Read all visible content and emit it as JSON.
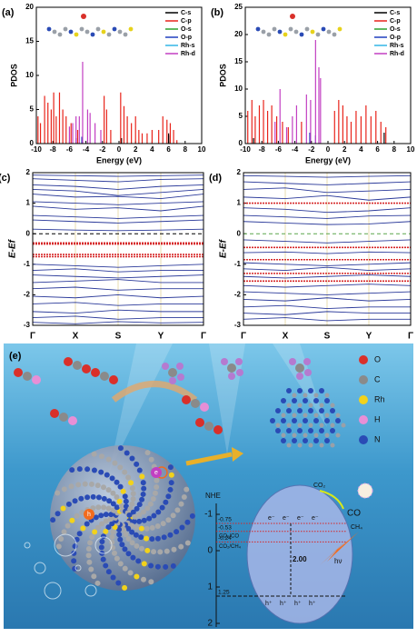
{
  "chart_data": [
    {
      "type": "stem",
      "panel_label": "(a)",
      "xlabel": "Energy (eV)",
      "ylabel": "PDOS",
      "xlim": [
        -10,
        10
      ],
      "xticks": [
        -10,
        -8,
        -6,
        -4,
        -2,
        0,
        2,
        4,
        6,
        8,
        10
      ],
      "ylim": [
        0,
        20
      ],
      "yticks": [
        0,
        5,
        10,
        15,
        20
      ],
      "legend": "upper right",
      "series": [
        {
          "name": "C-s",
          "color": "#000000",
          "x": [
            0.3,
            6.0,
            6.2
          ],
          "values": [
            0.8,
            1.5,
            1.2
          ]
        },
        {
          "name": "C-p",
          "color": "#e8231a",
          "x": [
            -9.8,
            -9.5,
            -9,
            -8.6,
            -8.2,
            -7.9,
            -7.6,
            -7.2,
            -6.8,
            -6.4,
            -5.8,
            -5,
            -1.8,
            -1.5,
            -1,
            0.2,
            0.6,
            1,
            1.5,
            2,
            2.4,
            2.8,
            3.4,
            4,
            4.8,
            5.3,
            5.8,
            6.2,
            6.6,
            7
          ],
          "values": [
            4,
            3,
            7,
            6,
            5,
            7.5,
            4,
            7.5,
            5,
            4,
            3,
            2,
            7,
            5,
            2,
            7.5,
            5.5,
            4,
            3,
            4,
            2,
            1.5,
            1.5,
            2,
            2,
            4,
            3.5,
            3,
            2,
            0.5
          ]
        },
        {
          "name": "O-s",
          "color": "#2ca02c",
          "x": [],
          "values": []
        },
        {
          "name": "O-p",
          "color": "#1f3fbf",
          "x": [
            -5.2,
            -4.5
          ],
          "values": [
            0.8,
            1
          ]
        },
        {
          "name": "Rh-s",
          "color": "#33b5e5",
          "x": [],
          "values": []
        },
        {
          "name": "Rh-d",
          "color": "#c23fc2",
          "x": [
            -6,
            -5.6,
            -5.2,
            -4.8,
            -4.4,
            -3.8,
            -3.5,
            -2.9,
            -2.2
          ],
          "values": [
            2.5,
            3,
            4,
            4,
            12,
            5,
            4.5,
            3,
            2
          ]
        }
      ]
    },
    {
      "type": "stem",
      "panel_label": "(b)",
      "xlabel": "Energy (eV)",
      "ylabel": "PDOS",
      "xlim": [
        -10,
        10
      ],
      "xticks": [
        -10,
        -8,
        -6,
        -4,
        -2,
        0,
        2,
        4,
        6,
        8,
        10
      ],
      "ylim": [
        0,
        25
      ],
      "yticks": [
        0,
        5,
        10,
        15,
        20,
        25
      ],
      "legend": "upper right",
      "series": [
        {
          "name": "C-s",
          "color": "#000000",
          "x": [
            -9,
            6.8
          ],
          "values": [
            1,
            2
          ]
        },
        {
          "name": "C-p",
          "color": "#e8231a",
          "x": [
            -9.7,
            -9.2,
            -8.8,
            -8.3,
            -7.8,
            -7.3,
            -6.8,
            -6.2,
            -5.5,
            -4.8,
            -3.2,
            0.8,
            1.3,
            1.8,
            2.3,
            2.8,
            3.4,
            4,
            4.6,
            5.2,
            5.8,
            6.4,
            7
          ],
          "values": [
            6,
            8,
            5,
            7,
            8,
            6,
            7,
            5,
            4,
            3,
            4,
            6,
            8,
            7,
            5,
            4,
            6,
            5,
            7,
            5,
            6,
            4,
            3
          ]
        },
        {
          "name": "O-s",
          "color": "#2ca02c",
          "x": [],
          "values": []
        },
        {
          "name": "O-p",
          "color": "#1f3fbf",
          "x": [
            -2.2,
            -1.5
          ],
          "values": [
            2,
            1.5
          ]
        },
        {
          "name": "Rh-s",
          "color": "#33b5e5",
          "x": [],
          "values": []
        },
        {
          "name": "Rh-d",
          "color": "#c23fc2",
          "x": [
            -6.4,
            -5.8,
            -5,
            -4.3,
            -3.8,
            -2.6,
            -2.1,
            -1.5,
            -1.1,
            -0.9
          ],
          "values": [
            4,
            10,
            3,
            5,
            7,
            9,
            8,
            19,
            14,
            12
          ]
        }
      ]
    },
    {
      "type": "band",
      "panel_label": "(c)",
      "ylabel": "E-Ef",
      "categories": [
        "Γ",
        "X",
        "S",
        "Y",
        "Γ"
      ],
      "ylim": [
        -3,
        2
      ],
      "yticks": [
        -3,
        -2,
        -1,
        0,
        1,
        2
      ],
      "fermi_level": 0,
      "fermi_color": "#000000",
      "series": [
        {
          "color": "#2b3a9a",
          "bands": [
            [
              1.92,
              1.9,
              1.88,
              1.9,
              1.92
            ],
            [
              1.8,
              1.75,
              1.7,
              1.78,
              1.8
            ],
            [
              1.6,
              1.55,
              1.45,
              1.55,
              1.6
            ],
            [
              1.45,
              1.4,
              1.25,
              1.35,
              1.45
            ],
            [
              1.3,
              1.2,
              1.22,
              1.15,
              1.3
            ],
            [
              1.05,
              1.0,
              0.95,
              1.0,
              1.05
            ],
            [
              0.9,
              0.8,
              0.85,
              0.75,
              0.9
            ],
            [
              0.6,
              0.55,
              0.5,
              0.55,
              0.6
            ],
            [
              0.45,
              0.4,
              0.35,
              0.4,
              0.45
            ],
            [
              0.15,
              0.12,
              0.1,
              0.12,
              0.15
            ],
            [
              -1.0,
              -1.05,
              -1.1,
              -1.05,
              -1.0
            ],
            [
              -1.2,
              -1.15,
              -1.25,
              -1.2,
              -1.2
            ],
            [
              -1.35,
              -1.4,
              -1.45,
              -1.4,
              -1.35
            ],
            [
              -1.6,
              -1.55,
              -1.5,
              -1.6,
              -1.6
            ],
            [
              -1.8,
              -1.75,
              -1.85,
              -1.8,
              -1.8
            ],
            [
              -2.05,
              -2.1,
              -2.0,
              -2.1,
              -2.05
            ],
            [
              -2.3,
              -2.25,
              -2.35,
              -2.3,
              -2.3
            ],
            [
              -2.55,
              -2.6,
              -2.5,
              -2.55,
              -2.55
            ],
            [
              -2.75,
              -2.7,
              -2.8,
              -2.75,
              -2.75
            ],
            [
              -2.9,
              -2.95,
              -2.88,
              -2.92,
              -2.9
            ]
          ]
        },
        {
          "color": "#d62728",
          "bands": [
            [
              -0.3,
              -0.3,
              -0.3,
              -0.3,
              -0.3
            ],
            [
              -0.34,
              -0.34,
              -0.34,
              -0.34,
              -0.34
            ],
            [
              -0.68,
              -0.68,
              -0.68,
              -0.68,
              -0.68
            ],
            [
              -0.75,
              -0.75,
              -0.75,
              -0.75,
              -0.75
            ]
          ]
        }
      ]
    },
    {
      "type": "band",
      "panel_label": "(d)",
      "ylabel": "E-Ef",
      "categories": [
        "Γ",
        "X",
        "S",
        "Y",
        "Γ"
      ],
      "ylim": [
        -3,
        2
      ],
      "yticks": [
        -3,
        -2,
        -1,
        0,
        1,
        2
      ],
      "fermi_level": 0,
      "fermi_color": "#5aa64a",
      "series": [
        {
          "color": "#2b3a9a",
          "bands": [
            [
              1.9,
              1.88,
              1.85,
              1.88,
              1.9
            ],
            [
              1.7,
              1.65,
              1.6,
              1.65,
              1.7
            ],
            [
              1.45,
              1.5,
              1.35,
              1.4,
              1.45
            ],
            [
              1.2,
              1.15,
              1.25,
              1.1,
              1.2
            ],
            [
              0.85,
              0.8,
              0.7,
              0.75,
              0.85
            ],
            [
              0.6,
              0.55,
              0.5,
              0.58,
              0.6
            ],
            [
              0.4,
              0.35,
              0.3,
              0.32,
              0.4
            ],
            [
              -0.2,
              -0.25,
              -0.3,
              -0.25,
              -0.2
            ],
            [
              -0.62,
              -0.6,
              -0.65,
              -0.6,
              -0.62
            ],
            [
              -0.95,
              -1.0,
              -1.05,
              -1.0,
              -0.95
            ],
            [
              -1.15,
              -1.2,
              -1.1,
              -1.2,
              -1.15
            ],
            [
              -1.4,
              -1.45,
              -1.4,
              -1.35,
              -1.4
            ],
            [
              -1.7,
              -1.75,
              -1.7,
              -1.65,
              -1.7
            ],
            [
              -1.9,
              -1.95,
              -2.0,
              -1.95,
              -1.9
            ],
            [
              -2.15,
              -2.2,
              -2.1,
              -2.2,
              -2.15
            ],
            [
              -2.4,
              -2.35,
              -2.45,
              -2.4,
              -2.4
            ],
            [
              -2.6,
              -2.65,
              -2.55,
              -2.6,
              -2.6
            ],
            [
              -2.8,
              -2.75,
              -2.85,
              -2.8,
              -2.8
            ]
          ]
        },
        {
          "color": "#d62728",
          "bands": [
            [
              1.0,
              1.0,
              1.0,
              1.0,
              1.0
            ],
            [
              -0.45,
              -0.45,
              -0.45,
              -0.45,
              -0.45
            ],
            [
              -0.85,
              -0.85,
              -0.85,
              -0.85,
              -0.85
            ],
            [
              -1.3,
              -1.3,
              -1.3,
              -1.3,
              -1.3
            ],
            [
              -1.55,
              -1.55,
              -1.55,
              -1.55,
              -1.55
            ]
          ]
        }
      ]
    }
  ],
  "illustration": {
    "panel_label": "(e)",
    "legend": [
      "O",
      "C",
      "Rh",
      "H",
      "N"
    ],
    "legend_colors": [
      "#d9302a",
      "#8a8a8a",
      "#f2d21b",
      "#e78fd6",
      "#2a4bb5"
    ],
    "sphere_marks": [
      "e",
      "h"
    ],
    "nhe_label": "NHE",
    "nhe_lim": [
      -1.3,
      2.1
    ],
    "nhe_ticks": [
      -1,
      0,
      1,
      2
    ],
    "potentials": [
      -0.75,
      -0.53,
      -0.24,
      1.25
    ],
    "couples": [
      "CO₂/CO",
      "CO₂/CH₄"
    ],
    "gap": {
      "value": 2,
      "label": "2.00"
    },
    "electrons": [
      "e⁻",
      "e⁻",
      "e⁻",
      "e⁻"
    ],
    "holes": [
      "h⁺",
      "h⁺",
      "h⁺",
      "h⁺"
    ],
    "reactant": "CO₂",
    "products": [
      "CO",
      "CH₄"
    ],
    "light": "hν"
  }
}
